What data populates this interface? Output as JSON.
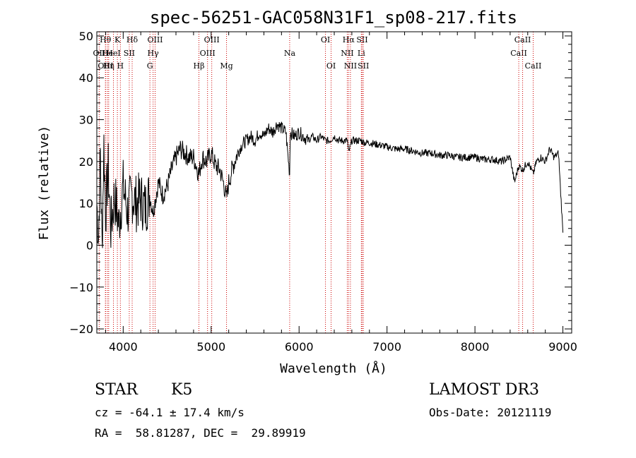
{
  "chart_data": {
    "type": "line",
    "title": "spec-56251-GAC058N31F1_sp08-217.fits",
    "xlabel": "Wavelength (Å)",
    "ylabel": "Flux (relative)",
    "xlim": [
      3700,
      9100
    ],
    "ylim": [
      -21,
      51
    ],
    "xticks": [
      4000,
      5000,
      6000,
      7000,
      8000,
      9000
    ],
    "yticks": [
      -20,
      -10,
      0,
      10,
      20,
      30,
      40,
      50
    ],
    "grid": false,
    "line_color": "#000000",
    "marker_color": "#cc0000",
    "spectrum": {
      "x": [
        3700,
        3720,
        3740,
        3760,
        3780,
        3800,
        3830,
        3860,
        3900,
        3950,
        4000,
        4050,
        4100,
        4150,
        4200,
        4250,
        4300,
        4340,
        4400,
        4450,
        4500,
        4550,
        4600,
        4650,
        4700,
        4750,
        4800,
        4861,
        4900,
        4950,
        5000,
        5050,
        5100,
        5150,
        5175,
        5200,
        5250,
        5300,
        5350,
        5400,
        5450,
        5500,
        5550,
        5600,
        5650,
        5700,
        5750,
        5800,
        5850,
        5893,
        5900,
        5950,
        6000,
        6050,
        6100,
        6150,
        6200,
        6250,
        6300,
        6350,
        6400,
        6450,
        6500,
        6550,
        6563,
        6600,
        6650,
        6700,
        6750,
        6800,
        6900,
        7000,
        7100,
        7200,
        7300,
        7400,
        7500,
        7600,
        7700,
        7800,
        7900,
        8000,
        8100,
        8200,
        8300,
        8400,
        8450,
        8498,
        8542,
        8600,
        8662,
        8700,
        8750,
        8800,
        8850,
        8900,
        8950,
        9000
      ],
      "y": [
        10,
        2,
        22,
        -1,
        24,
        8,
        18,
        4,
        12,
        5,
        14,
        8,
        12,
        10,
        11,
        9,
        12,
        8,
        15,
        12,
        14,
        18,
        21,
        23,
        22,
        21,
        21,
        17,
        21,
        20,
        22,
        19,
        18,
        14,
        11,
        15,
        19,
        22,
        24,
        25,
        26,
        25,
        27,
        26,
        28,
        27,
        29,
        28,
        27,
        17,
        27,
        26,
        27,
        26,
        25,
        26,
        25,
        26,
        25,
        25,
        26,
        25,
        25,
        25,
        22,
        25,
        25,
        25,
        24.5,
        24.5,
        24,
        23.5,
        23,
        23,
        22.5,
        22,
        22,
        21.5,
        21.5,
        21,
        21,
        21,
        20.5,
        20.5,
        20,
        21,
        15,
        19,
        18,
        20,
        17,
        20,
        21,
        20,
        23,
        21,
        22,
        3
      ]
    },
    "line_markers": [
      {
        "label": "OII",
        "wave": 3727,
        "row": 1
      },
      {
        "label": "Hθ",
        "wave": 3798,
        "row": 0
      },
      {
        "label": "OIII",
        "wave": 3800,
        "row": 2
      },
      {
        "label": "He",
        "wave": 3820,
        "row": 1
      },
      {
        "label": "Hη",
        "wave": 3835,
        "row": 2
      },
      {
        "label": "K",
        "wave": 3934,
        "row": 0
      },
      {
        "label": "HeI",
        "wave": 3889,
        "row": 1
      },
      {
        "label": "SII",
        "wave": 4069,
        "row": 1
      },
      {
        "label": "H",
        "wave": 3968,
        "row": 2
      },
      {
        "label": "Hδ",
        "wave": 4102,
        "row": 0
      },
      {
        "label": "OIII",
        "wave": 4363,
        "row": 0
      },
      {
        "label": "Hγ",
        "wave": 4340,
        "row": 1
      },
      {
        "label": "G",
        "wave": 4304,
        "row": 2
      },
      {
        "label": "Hβ",
        "wave": 4861,
        "row": 2
      },
      {
        "label": "OIII",
        "wave": 4959,
        "row": 1
      },
      {
        "label": "OIII",
        "wave": 5007,
        "row": 0
      },
      {
        "label": "Mg",
        "wave": 5175,
        "row": 2
      },
      {
        "label": "Na",
        "wave": 5893,
        "row": 1
      },
      {
        "label": "OI",
        "wave": 6300,
        "row": 0
      },
      {
        "label": "OI",
        "wave": 6364,
        "row": 2
      },
      {
        "label": "Hα",
        "wave": 6563,
        "row": 0
      },
      {
        "label": "NII",
        "wave": 6548,
        "row": 1
      },
      {
        "label": "NII",
        "wave": 6584,
        "row": 2
      },
      {
        "label": "SII",
        "wave": 6717,
        "row": 0
      },
      {
        "label": "Li",
        "wave": 6708,
        "row": 1
      },
      {
        "label": "SII",
        "wave": 6731,
        "row": 2
      },
      {
        "label": "CaII",
        "wave": 8498,
        "row": 1
      },
      {
        "label": "CaII",
        "wave": 8542,
        "row": 0
      },
      {
        "label": "CaII",
        "wave": 8662,
        "row": 2
      }
    ]
  },
  "info": {
    "class": "STAR",
    "subclass": "K5",
    "survey": "LAMOST DR3",
    "cz": "cz = -64.1 ± 17.4 km/s",
    "obs_date": "Obs-Date: 20121119",
    "radec": "RA =  58.81287, DEC =  29.89919"
  }
}
